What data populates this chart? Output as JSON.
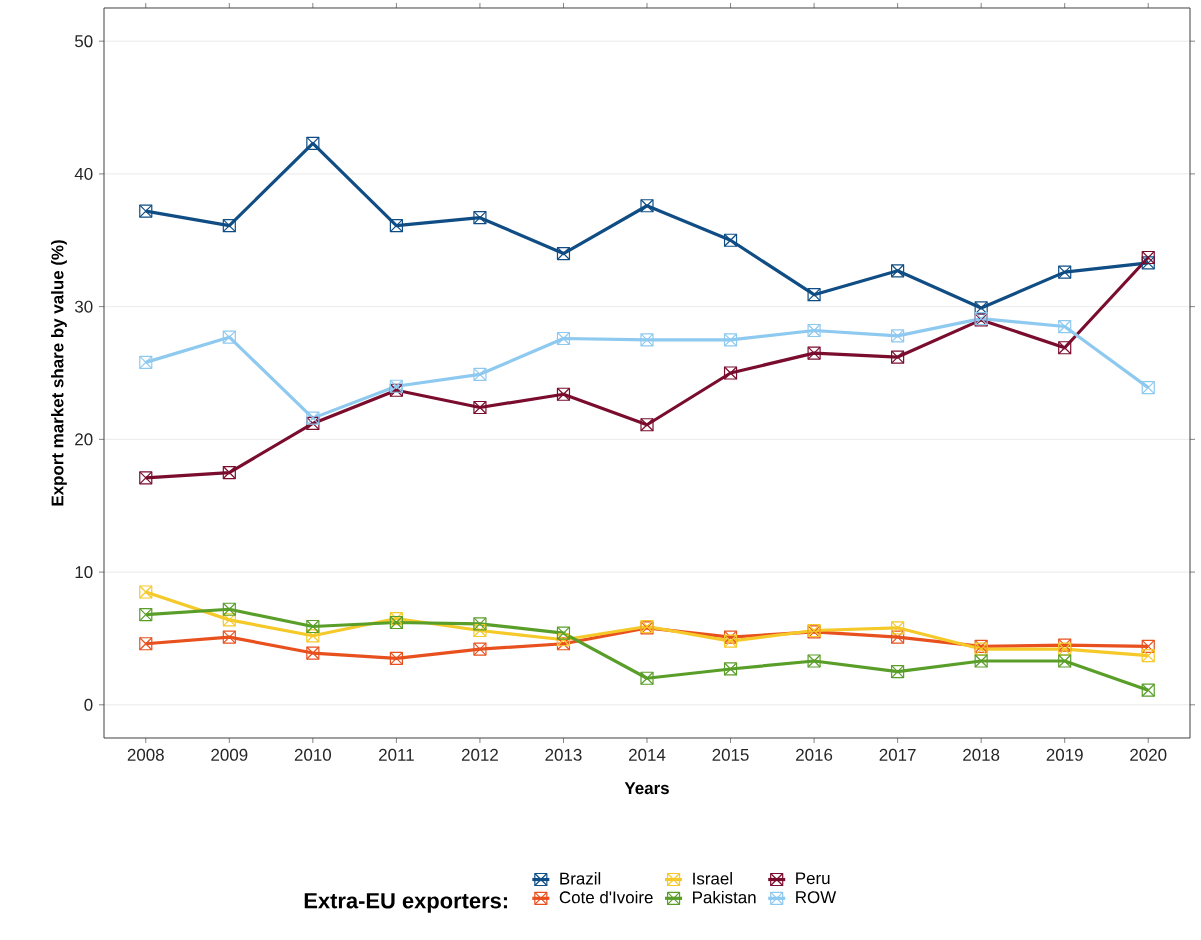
{
  "chart_data": {
    "type": "line",
    "xlabel": "Years",
    "ylabel": "Export market share by value (%)",
    "legend_title": "Extra-EU exporters:",
    "categories": [
      "2008",
      "2009",
      "2010",
      "2011",
      "2012",
      "2013",
      "2014",
      "2015",
      "2016",
      "2017",
      "2018",
      "2019",
      "2020"
    ],
    "ylim": [
      -2.5,
      52.5
    ],
    "yticks": [
      0,
      10,
      20,
      30,
      40,
      50
    ],
    "grid": "y",
    "legend": "bottom",
    "marker": "square",
    "line_style": "solid",
    "series": [
      {
        "name": "Brazil",
        "color": "#0f4d84",
        "values": [
          37.2,
          36.1,
          42.3,
          36.1,
          36.7,
          34.0,
          37.6,
          35.0,
          30.9,
          32.7,
          29.9,
          32.6,
          33.3
        ]
      },
      {
        "name": "Cote d'Ivoire",
        "color": "#e8501e",
        "values": [
          4.6,
          5.1,
          3.9,
          3.5,
          4.2,
          4.6,
          5.8,
          5.1,
          5.5,
          5.1,
          4.4,
          4.5,
          4.4
        ]
      },
      {
        "name": "Israel",
        "color": "#f5c92a",
        "values": [
          8.5,
          6.4,
          5.2,
          6.5,
          5.6,
          4.9,
          5.9,
          4.8,
          5.6,
          5.8,
          4.2,
          4.2,
          3.7
        ]
      },
      {
        "name": "Pakistan",
        "color": "#5a9e2a",
        "values": [
          6.8,
          7.2,
          5.9,
          6.2,
          6.1,
          5.4,
          2.0,
          2.7,
          3.3,
          2.5,
          3.3,
          3.3,
          1.1
        ]
      },
      {
        "name": "Peru",
        "color": "#7a0d2e",
        "values": [
          17.1,
          17.5,
          21.2,
          23.7,
          22.4,
          23.4,
          21.1,
          25.0,
          26.5,
          26.2,
          29.0,
          26.9,
          33.7
        ]
      },
      {
        "name": "ROW",
        "color": "#8ec9f0",
        "values": [
          25.8,
          27.7,
          21.6,
          24.0,
          24.9,
          27.6,
          27.5,
          27.5,
          28.2,
          27.8,
          29.1,
          28.5,
          23.9
        ]
      }
    ]
  }
}
